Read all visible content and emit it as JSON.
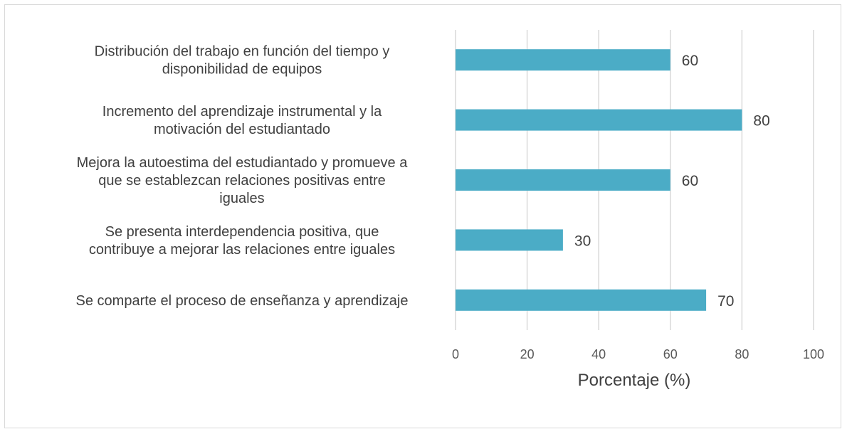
{
  "chart_data": {
    "type": "bar",
    "orientation": "horizontal",
    "categories": [
      [
        "Distribución del trabajo en función del tiempo y",
        "disponibilidad de equipos"
      ],
      [
        "Incremento del aprendizaje instrumental y la",
        "motivación del estudiantado"
      ],
      [
        "Mejora la autoestima del estudiantado y promueve a",
        "que se establezcan relaciones positivas entre",
        "iguales"
      ],
      [
        "Se presenta interdependencia positiva, que",
        "contribuye a mejorar las relaciones entre iguales"
      ],
      [
        "Se comparte el proceso de enseñanza y aprendizaje"
      ]
    ],
    "values": [
      60,
      80,
      60,
      30,
      70
    ],
    "xlim": [
      0,
      100
    ],
    "xticks": [
      0,
      20,
      40,
      60,
      80,
      100
    ],
    "xlabel": "Porcentaje (%)",
    "ylabel": "",
    "title": "",
    "grid": true,
    "data_labels": true,
    "colors": {
      "bar": "#4bacc6",
      "grid": "#d9d9d9"
    }
  }
}
